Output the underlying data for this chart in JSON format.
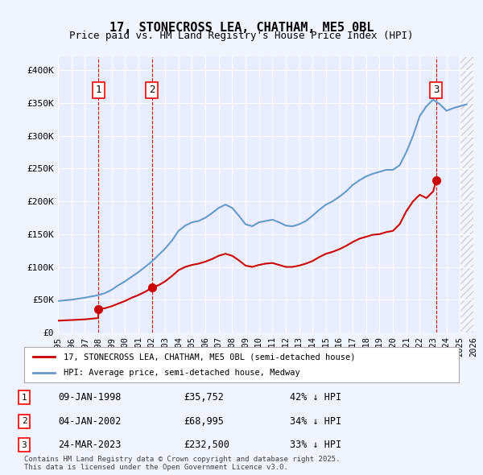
{
  "title": "17, STONECROSS LEA, CHATHAM, ME5 0BL",
  "subtitle": "Price paid vs. HM Land Registry's House Price Index (HPI)",
  "background_color": "#f0f4ff",
  "plot_bg_color": "#e8eeff",
  "grid_color": "#ffffff",
  "ylabel": "",
  "ylim": [
    0,
    420000
  ],
  "yticks": [
    0,
    50000,
    100000,
    150000,
    200000,
    250000,
    300000,
    350000,
    400000
  ],
  "ytick_labels": [
    "£0",
    "£50K",
    "£100K",
    "£150K",
    "£200K",
    "£250K",
    "£300K",
    "£350K",
    "£400K"
  ],
  "hpi_color": "#6699cc",
  "price_color": "#cc0000",
  "sale_marker_color": "#cc0000",
  "vline_color": "#cc0000",
  "sales": [
    {
      "date_num": 1998.03,
      "price": 35752,
      "label": "1",
      "label_pct": "42%"
    },
    {
      "date_num": 2002.01,
      "price": 68995,
      "label": "2",
      "label_pct": "34%"
    },
    {
      "date_num": 2023.23,
      "price": 232500,
      "label": "3",
      "label_pct": "33%"
    }
  ],
  "hpi_data": {
    "years": [
      1995,
      1995.5,
      1996,
      1996.5,
      1997,
      1997.5,
      1998,
      1998.5,
      1999,
      1999.5,
      2000,
      2000.5,
      2001,
      2001.5,
      2002,
      2002.5,
      2003,
      2003.5,
      2004,
      2004.5,
      2005,
      2005.5,
      2006,
      2006.5,
      2007,
      2007.5,
      2008,
      2008.5,
      2009,
      2009.5,
      2010,
      2010.5,
      2011,
      2011.5,
      2012,
      2012.5,
      2013,
      2013.5,
      2014,
      2014.5,
      2015,
      2015.5,
      2016,
      2016.5,
      2017,
      2017.5,
      2018,
      2018.5,
      2019,
      2019.5,
      2020,
      2020.5,
      2021,
      2021.5,
      2022,
      2022.5,
      2023,
      2023.5,
      2024,
      2024.5,
      2025,
      2025.5
    ],
    "values": [
      48000,
      49000,
      50000,
      51500,
      53000,
      55000,
      57000,
      60000,
      65000,
      72000,
      78000,
      85000,
      92000,
      100000,
      108000,
      118000,
      128000,
      140000,
      155000,
      163000,
      168000,
      170000,
      175000,
      182000,
      190000,
      195000,
      190000,
      178000,
      165000,
      162000,
      168000,
      170000,
      172000,
      168000,
      163000,
      162000,
      165000,
      170000,
      178000,
      187000,
      195000,
      200000,
      207000,
      215000,
      225000,
      232000,
      238000,
      242000,
      245000,
      248000,
      248000,
      255000,
      275000,
      300000,
      330000,
      345000,
      355000,
      348000,
      338000,
      342000,
      345000,
      348000
    ]
  },
  "price_hpi_data": {
    "years": [
      1995,
      1995.5,
      1996,
      1996.5,
      1997,
      1997.5,
      1998,
      1998.03,
      1998.5,
      1999,
      1999.5,
      2000,
      2000.5,
      2001,
      2001.5,
      2002,
      2002.01,
      2002.5,
      2003,
      2003.5,
      2004,
      2004.5,
      2005,
      2005.5,
      2006,
      2006.5,
      2007,
      2007.5,
      2008,
      2008.5,
      2009,
      2009.5,
      2010,
      2010.5,
      2011,
      2011.5,
      2012,
      2012.5,
      2013,
      2013.5,
      2014,
      2014.5,
      2015,
      2015.5,
      2016,
      2016.5,
      2017,
      2017.5,
      2018,
      2018.5,
      2019,
      2019.5,
      2020,
      2020.5,
      2021,
      2021.5,
      2022,
      2022.5,
      2023,
      2023.23
    ],
    "values": [
      18000,
      18500,
      19000,
      19500,
      20000,
      21000,
      22000,
      35752,
      37000,
      40000,
      44000,
      48000,
      53000,
      57000,
      62000,
      68000,
      68995,
      72000,
      78000,
      86000,
      95000,
      100000,
      103000,
      105000,
      108000,
      112000,
      117000,
      120000,
      117000,
      110000,
      102000,
      100000,
      103000,
      105000,
      106000,
      103000,
      100000,
      100000,
      102000,
      105000,
      109000,
      115000,
      120000,
      123000,
      127000,
      132000,
      138000,
      143000,
      146000,
      149000,
      150000,
      153000,
      155000,
      165000,
      185000,
      200000,
      210000,
      205000,
      215000,
      232500
    ]
  },
  "legend_entry1": "17, STONECROSS LEA, CHATHAM, ME5 0BL (semi-detached house)",
  "legend_entry2": "HPI: Average price, semi-detached house, Medway",
  "table_entries": [
    {
      "num": "1",
      "date": "09-JAN-1998",
      "price": "£35,752",
      "pct": "42% ↓ HPI"
    },
    {
      "num": "2",
      "date": "04-JAN-2002",
      "price": "£68,995",
      "pct": "34% ↓ HPI"
    },
    {
      "num": "3",
      "date": "24-MAR-2023",
      "price": "£232,500",
      "pct": "33% ↓ HPI"
    }
  ],
  "footer": "Contains HM Land Registry data © Crown copyright and database right 2025.\nThis data is licensed under the Open Government Licence v3.0.",
  "xmin": 1995,
  "xmax": 2026,
  "xticks": [
    1995,
    1996,
    1997,
    1998,
    1999,
    2000,
    2001,
    2002,
    2003,
    2004,
    2005,
    2006,
    2007,
    2008,
    2009,
    2010,
    2011,
    2012,
    2013,
    2014,
    2015,
    2016,
    2017,
    2018,
    2019,
    2020,
    2021,
    2022,
    2023,
    2024,
    2025,
    2026
  ],
  "hatched_region_start": 2025.0,
  "hatched_region_end": 2026.5
}
